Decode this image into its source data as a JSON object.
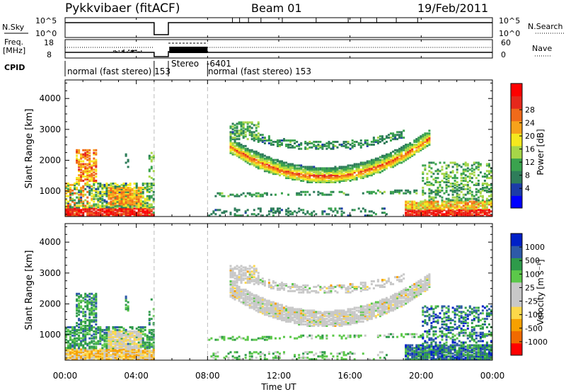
{
  "header": {
    "radar": "Pykkvibaer (fitACF)",
    "beam": "Beam 01",
    "date": "19/Feb/2011"
  },
  "strip": {
    "nsky_label": "N.Sky",
    "nsearch_label": "N.Search",
    "nsky_ticks": [
      "10^5",
      "10^0"
    ],
    "nsearch_ticks": [
      "10^5",
      "10^0"
    ],
    "freq_label_1": "Freq.",
    "freq_label_2": "[MHz]",
    "freq_ticks": [
      "18",
      "8"
    ],
    "nave_label": "Nave",
    "nave_ticks": [
      "60",
      "0"
    ],
    "cpid_label": "CPID",
    "cpid_segments": [
      {
        "text": "normal (fast stereo) 153",
        "start_h": 0,
        "end_h": 5
      },
      {
        "text": "Stereo",
        "start_h": 5.8,
        "end_h": 8
      },
      {
        "text": "-6401",
        "start_h": 8,
        "end_h": 8
      },
      {
        "text": "normal (fast stereo) 153",
        "start_h": 8,
        "end_h": 24
      }
    ]
  },
  "colors": {
    "power": [
      "#0000ff",
      "#1c3ca8",
      "#2e7d5a",
      "#3aa34e",
      "#a6d648",
      "#f5e81e",
      "#f7a21b",
      "#f06a1a",
      "#e6281c",
      "#ff0000"
    ],
    "velocity": [
      "#ff0000",
      "#f16a00",
      "#f7a000",
      "#fdd84a",
      "#c8c8c8",
      "#c8c8c8",
      "#5cc84a",
      "#2e9a4a",
      "#2e5aa8",
      "#0020c8"
    ]
  },
  "chart_data": [
    {
      "type": "heatmap",
      "name": "power",
      "ylabel": "Slant Range [km]",
      "xlabel": "",
      "xlim_h": [
        0,
        24
      ],
      "ylim_km": [
        180,
        4600
      ],
      "y_ticks": [
        1000,
        2000,
        3000,
        4000
      ],
      "colorbar_label": "Power [dB]",
      "colorbar_ticks": [
        "4",
        "8",
        "12",
        "16",
        "20",
        "24",
        "28"
      ],
      "grid": false
    },
    {
      "type": "heatmap",
      "name": "velocity",
      "ylabel": "Slant Range [km]",
      "xlabel": "Time UT",
      "xlim_h": [
        0,
        24
      ],
      "ylim_km": [
        180,
        4600
      ],
      "y_ticks": [
        1000,
        2000,
        3000,
        4000
      ],
      "x_ticks": [
        "00:00",
        "04:00",
        "08:00",
        "12:00",
        "16:00",
        "20:00",
        "00:00"
      ],
      "colorbar_label": "Velocity [m s⁻¹]",
      "colorbar_ticks": [
        "-1000",
        "-500",
        "-100",
        "-25",
        "25",
        "100",
        "500",
        "1000"
      ],
      "grid": false
    }
  ]
}
